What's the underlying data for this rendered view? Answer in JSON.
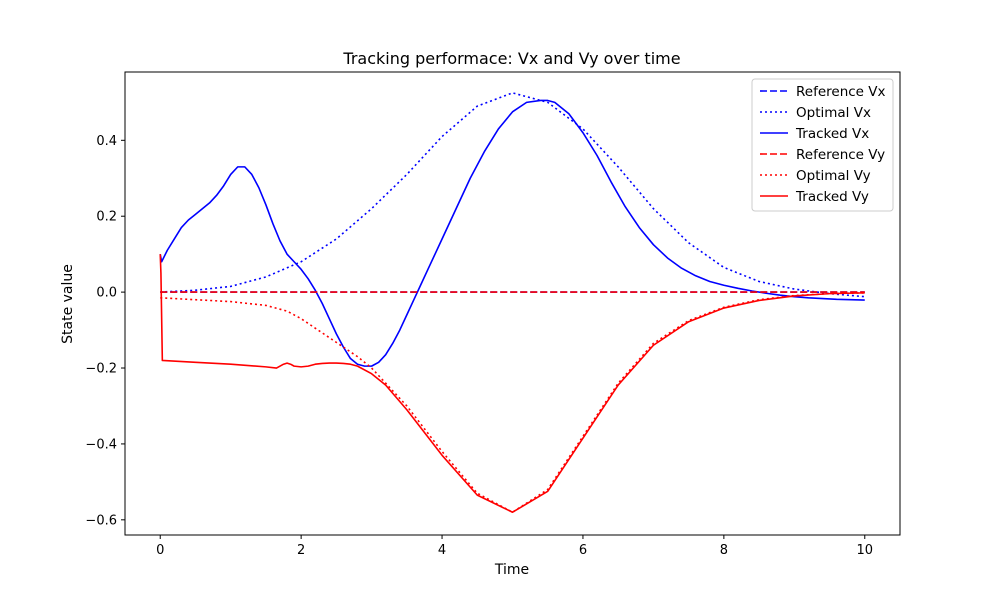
{
  "chart_data": {
    "type": "line",
    "title": "Tracking performace: Vx and Vy over time",
    "xlabel": "Time",
    "ylabel": "State value",
    "xlim": [
      -0.5,
      10.5
    ],
    "ylim": [
      -0.64,
      0.58
    ],
    "xticks": [
      0,
      2,
      4,
      6,
      8,
      10
    ],
    "xtick_labels": [
      "0",
      "2",
      "4",
      "6",
      "8",
      "10"
    ],
    "yticks": [
      -0.6,
      -0.4,
      -0.2,
      0.0,
      0.2,
      0.4
    ],
    "ytick_labels": [
      "−0.6",
      "−0.4",
      "−0.2",
      "0.0",
      "0.2",
      "0.4"
    ],
    "grid": false,
    "legend_position": "top-right",
    "series": [
      {
        "name": "Reference Vx",
        "color": "#0000ff",
        "style": "dashed",
        "x": [
          0,
          10
        ],
        "y": [
          0.0,
          0.0
        ]
      },
      {
        "name": "Optimal Vx",
        "color": "#0000ff",
        "style": "dotted",
        "x": [
          0,
          0.5,
          1,
          1.5,
          2,
          2.5,
          3,
          3.5,
          4,
          4.5,
          5,
          5.5,
          6,
          6.5,
          7,
          7.5,
          8,
          8.5,
          9,
          9.5,
          10
        ],
        "y": [
          0.0,
          0.005,
          0.015,
          0.04,
          0.08,
          0.14,
          0.22,
          0.31,
          0.41,
          0.49,
          0.525,
          0.5,
          0.43,
          0.33,
          0.22,
          0.13,
          0.065,
          0.028,
          0.008,
          -0.004,
          -0.012
        ]
      },
      {
        "name": "Tracked Vx",
        "color": "#0000ff",
        "style": "solid",
        "x": [
          0,
          0.02,
          0.1,
          0.2,
          0.3,
          0.4,
          0.5,
          0.6,
          0.7,
          0.8,
          0.9,
          1.0,
          1.1,
          1.2,
          1.3,
          1.4,
          1.5,
          1.6,
          1.7,
          1.8,
          1.9,
          2.0,
          2.1,
          2.2,
          2.3,
          2.4,
          2.5,
          2.6,
          2.7,
          2.8,
          2.9,
          3.0,
          3.1,
          3.2,
          3.3,
          3.4,
          3.5,
          3.6,
          3.7,
          3.8,
          3.9,
          4.0,
          4.2,
          4.4,
          4.6,
          4.8,
          5.0,
          5.2,
          5.4,
          5.5,
          5.6,
          5.8,
          6.0,
          6.2,
          6.4,
          6.6,
          6.8,
          7.0,
          7.2,
          7.4,
          7.6,
          7.8,
          8.0,
          8.2,
          8.4,
          8.6,
          8.8,
          9.0,
          9.2,
          9.4,
          9.6,
          9.8,
          10.0
        ],
        "y": [
          0.1,
          0.08,
          0.11,
          0.14,
          0.17,
          0.19,
          0.205,
          0.22,
          0.235,
          0.255,
          0.28,
          0.31,
          0.33,
          0.33,
          0.31,
          0.275,
          0.23,
          0.18,
          0.135,
          0.1,
          0.08,
          0.06,
          0.035,
          0.005,
          -0.03,
          -0.07,
          -0.11,
          -0.145,
          -0.175,
          -0.19,
          -0.195,
          -0.195,
          -0.185,
          -0.165,
          -0.135,
          -0.1,
          -0.06,
          -0.02,
          0.02,
          0.06,
          0.1,
          0.14,
          0.22,
          0.3,
          0.37,
          0.43,
          0.475,
          0.5,
          0.505,
          0.505,
          0.5,
          0.47,
          0.42,
          0.36,
          0.29,
          0.225,
          0.17,
          0.125,
          0.09,
          0.063,
          0.043,
          0.028,
          0.018,
          0.01,
          0.003,
          -0.003,
          -0.008,
          -0.012,
          -0.015,
          -0.017,
          -0.019,
          -0.02,
          -0.021
        ]
      },
      {
        "name": "Reference Vy",
        "color": "#ff0000",
        "style": "dashed",
        "x": [
          0,
          10
        ],
        "y": [
          0.0,
          0.0
        ]
      },
      {
        "name": "Optimal Vy",
        "color": "#ff0000",
        "style": "dotted",
        "x": [
          0,
          0.5,
          1,
          1.5,
          1.8,
          2,
          2.2,
          2.4,
          2.6,
          2.8,
          3,
          3.5,
          4,
          4.5,
          5,
          5.5,
          6,
          6.5,
          7,
          7.5,
          8,
          8.5,
          9,
          9.5,
          10
        ],
        "y": [
          -0.015,
          -0.02,
          -0.025,
          -0.035,
          -0.05,
          -0.07,
          -0.095,
          -0.12,
          -0.145,
          -0.17,
          -0.2,
          -0.3,
          -0.42,
          -0.53,
          -0.58,
          -0.52,
          -0.38,
          -0.24,
          -0.135,
          -0.075,
          -0.04,
          -0.02,
          -0.009,
          -0.004,
          -0.002
        ]
      },
      {
        "name": "Tracked Vy",
        "color": "#ff0000",
        "style": "solid",
        "x": [
          0,
          0.01,
          0.03,
          0.5,
          1.0,
          1.5,
          1.65,
          1.75,
          1.8,
          1.85,
          1.9,
          2.0,
          2.1,
          2.2,
          2.3,
          2.4,
          2.5,
          2.6,
          2.7,
          2.8,
          3.0,
          3.2,
          3.5,
          4.0,
          4.5,
          5.0,
          5.5,
          6.0,
          6.5,
          7.0,
          7.5,
          8.0,
          8.5,
          9.0,
          9.5,
          10.0
        ],
        "y": [
          0.1,
          0.05,
          -0.18,
          -0.185,
          -0.19,
          -0.197,
          -0.2,
          -0.19,
          -0.187,
          -0.19,
          -0.195,
          -0.197,
          -0.195,
          -0.19,
          -0.188,
          -0.187,
          -0.187,
          -0.188,
          -0.19,
          -0.195,
          -0.215,
          -0.245,
          -0.31,
          -0.43,
          -0.535,
          -0.58,
          -0.525,
          -0.385,
          -0.245,
          -0.14,
          -0.078,
          -0.042,
          -0.022,
          -0.01,
          -0.004,
          -0.002
        ]
      }
    ]
  }
}
